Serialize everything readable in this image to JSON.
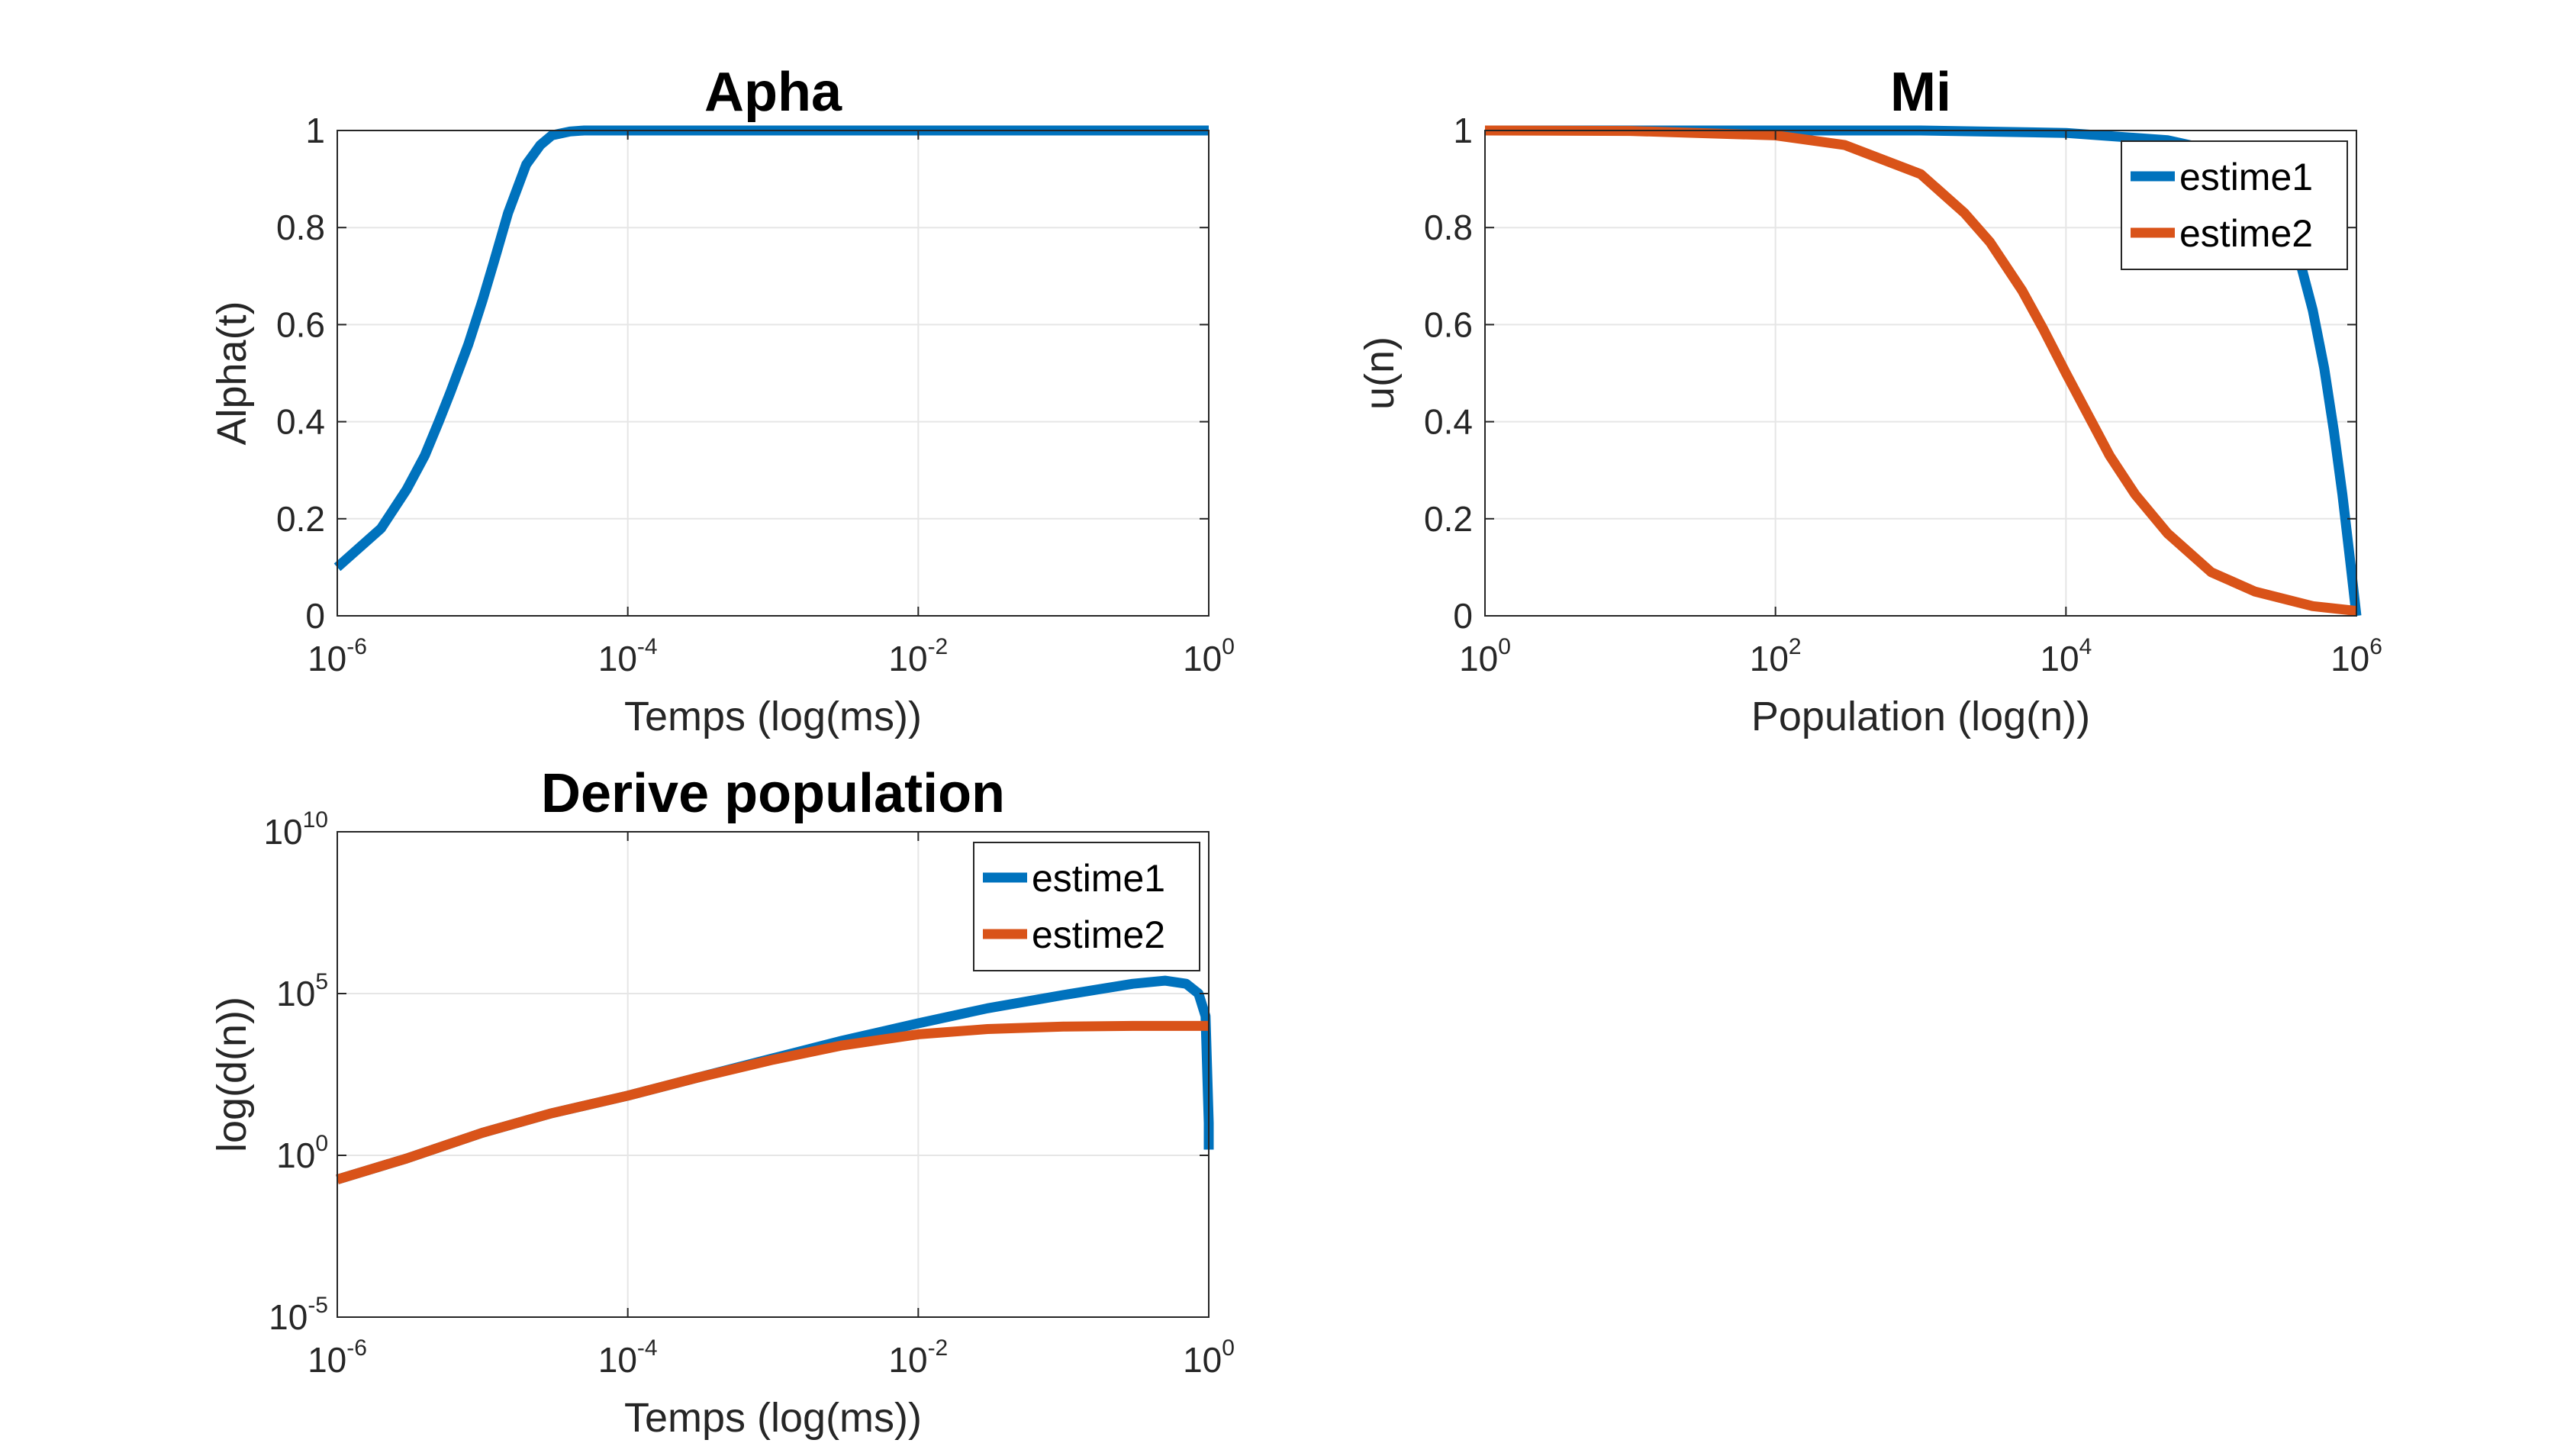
{
  "chart_data": [
    {
      "type": "line",
      "title": "Apha",
      "xlabel": "Temps (log(ms))",
      "ylabel": "Alpha(t)",
      "xscale": "log",
      "yscale": "linear",
      "xlim": [
        1e-06,
        1
      ],
      "ylim": [
        0,
        1
      ],
      "xticks": [
        {
          "base": "10",
          "exp": "-6"
        },
        {
          "base": "10",
          "exp": "-4"
        },
        {
          "base": "10",
          "exp": "-2"
        },
        {
          "base": "10",
          "exp": "0"
        }
      ],
      "yticks": [
        "0",
        "0.2",
        "0.4",
        "0.6",
        "0.8",
        "1"
      ],
      "grid": true,
      "legend": null,
      "series": [
        {
          "name": "",
          "color": "#0072BD",
          "x": [
            1e-06,
            2e-06,
            3e-06,
            4e-06,
            5e-06,
            6e-06,
            8e-06,
            1e-05,
            1.2e-05,
            1.5e-05,
            2e-05,
            2.5e-05,
            3e-05,
            4e-05,
            5e-05,
            6e-05,
            8e-05,
            0.0001,
            0.001,
            0.01,
            0.1,
            1
          ],
          "y": [
            0.1,
            0.18,
            0.26,
            0.33,
            0.4,
            0.46,
            0.56,
            0.65,
            0.73,
            0.83,
            0.93,
            0.97,
            0.99,
            0.998,
            1.0,
            1.0,
            1.0,
            1.0,
            1.0,
            1.0,
            1.0,
            1.0
          ]
        }
      ]
    },
    {
      "type": "line",
      "title": "Mi",
      "xlabel": "Population (log(n))",
      "ylabel": "u(n)",
      "xscale": "log",
      "yscale": "linear",
      "xlim": [
        1,
        1000000
      ],
      "ylim": [
        0,
        1
      ],
      "xticks": [
        {
          "base": "10",
          "exp": "0"
        },
        {
          "base": "10",
          "exp": "2"
        },
        {
          "base": "10",
          "exp": "4"
        },
        {
          "base": "10",
          "exp": "6"
        }
      ],
      "yticks": [
        "0",
        "0.2",
        "0.4",
        "0.6",
        "0.8",
        "1"
      ],
      "grid": true,
      "legend": "top-right",
      "series": [
        {
          "name": "estime1",
          "color": "#0072BD",
          "x": [
            1,
            10,
            100,
            1000,
            10000,
            50000,
            100000,
            200000,
            300000,
            400000,
            500000,
            600000,
            700000,
            800000,
            900000,
            1000000
          ],
          "y": [
            1.0,
            1.0,
            1.0,
            1.0,
            0.995,
            0.98,
            0.96,
            0.9,
            0.83,
            0.74,
            0.63,
            0.51,
            0.38,
            0.25,
            0.12,
            0.0
          ]
        },
        {
          "name": "estime2",
          "color": "#D95319",
          "x": [
            1,
            10,
            100,
            300,
            1000,
            2000,
            3000,
            5000,
            7000,
            10000,
            20000,
            30000,
            50000,
            100000,
            200000,
            500000,
            1000000
          ],
          "y": [
            1.0,
            0.999,
            0.99,
            0.97,
            0.91,
            0.83,
            0.77,
            0.67,
            0.59,
            0.5,
            0.33,
            0.25,
            0.17,
            0.09,
            0.05,
            0.02,
            0.01
          ]
        }
      ]
    },
    {
      "type": "line",
      "title": "Derive population",
      "xlabel": "Temps (log(ms))",
      "ylabel": "log(d(n))",
      "xscale": "log",
      "yscale": "log",
      "xlim": [
        1e-06,
        1
      ],
      "ylim": [
        1e-05,
        10000000000
      ],
      "xticks": [
        {
          "base": "10",
          "exp": "-6"
        },
        {
          "base": "10",
          "exp": "-4"
        },
        {
          "base": "10",
          "exp": "-2"
        },
        {
          "base": "10",
          "exp": "0"
        }
      ],
      "yticks": [
        {
          "base": "10",
          "exp": "-5"
        },
        {
          "base": "10",
          "exp": "0"
        },
        {
          "base": "10",
          "exp": "5"
        },
        {
          "base": "10",
          "exp": "10"
        }
      ],
      "grid": true,
      "legend": "top-right",
      "series": [
        {
          "name": "estime1",
          "color": "#0072BD",
          "x": [
            1e-06,
            3e-06,
            1e-05,
            3e-05,
            0.0001,
            0.0003,
            0.001,
            0.003,
            0.01,
            0.03,
            0.1,
            0.3,
            0.5,
            0.7,
            0.85,
            0.95,
            1.0,
            1.0
          ],
          "y": [
            0.18,
            0.8,
            5,
            20,
            70,
            250,
            1000,
            3500,
            12000,
            35000,
            90000,
            200000,
            250000,
            200000,
            100000,
            20000,
            10,
            1.5
          ]
        },
        {
          "name": "estime2",
          "color": "#D95319",
          "x": [
            1e-06,
            3e-06,
            1e-05,
            3e-05,
            0.0001,
            0.0003,
            0.001,
            0.003,
            0.01,
            0.03,
            0.1,
            0.3,
            1.0
          ],
          "y": [
            0.18,
            0.8,
            5,
            20,
            70,
            250,
            900,
            2500,
            5500,
            8000,
            9500,
            10000,
            10000
          ]
        }
      ]
    }
  ]
}
